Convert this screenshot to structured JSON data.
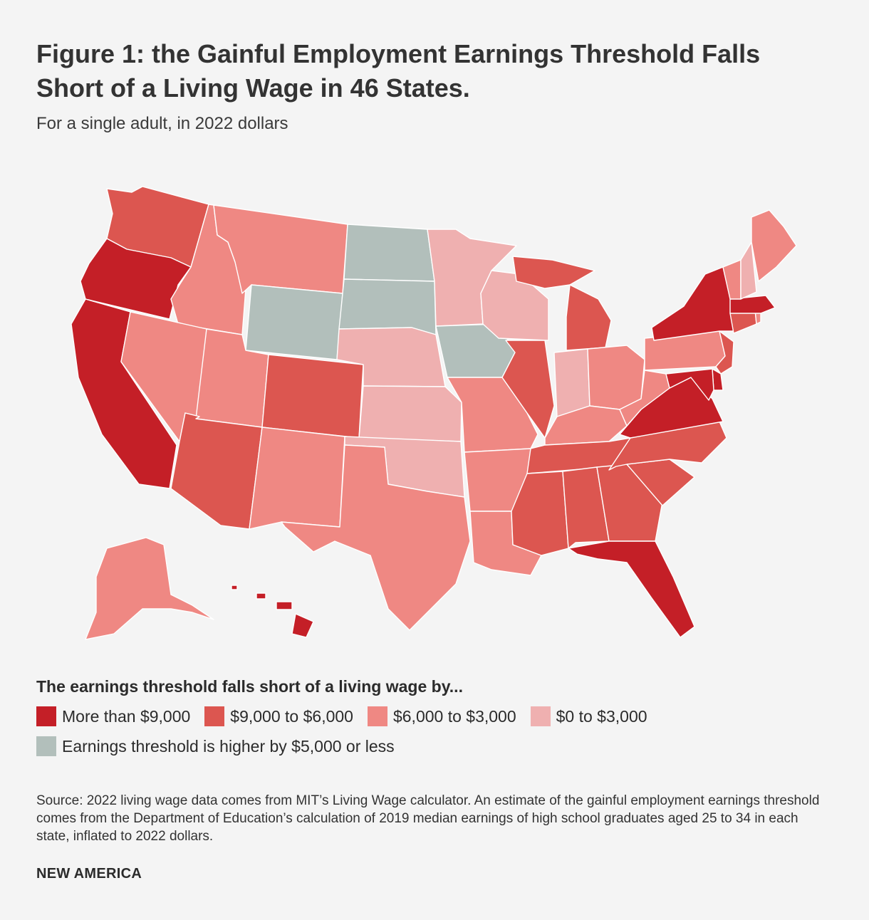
{
  "title": "Figure 1: the Gainful Employment Earnings Threshold Falls Short of a Living Wage in 46 States.",
  "subtitle": "For a single adult, in 2022 dollars",
  "legend": {
    "heading": "The earnings threshold falls short of a living wage by...",
    "items": [
      {
        "label": "More than $9,000",
        "color": "#c41f27"
      },
      {
        "label": "$9,000 to $6,000",
        "color": "#dc5650"
      },
      {
        "label": "$6,000 to $3,000",
        "color": "#ef8883"
      },
      {
        "label": "$0 to $3,000",
        "color": "#efb0b0"
      },
      {
        "label": "Earnings threshold is higher by $5,000 or less",
        "color": "#b2bfbb"
      }
    ]
  },
  "map_data": {
    "categories": [
      "More than $9,000",
      "$9,000 to $6,000",
      "$6,000 to $3,000",
      "$0 to $3,000",
      "Earnings threshold is higher by $5,000 or less"
    ],
    "states": [
      {
        "name": "WA",
        "category": 1
      },
      {
        "name": "OR",
        "category": 0
      },
      {
        "name": "CA",
        "category": 0
      },
      {
        "name": "ID",
        "category": 2
      },
      {
        "name": "NV",
        "category": 2
      },
      {
        "name": "MT",
        "category": 2
      },
      {
        "name": "WY",
        "category": 4
      },
      {
        "name": "UT",
        "category": 2
      },
      {
        "name": "AZ",
        "category": 1
      },
      {
        "name": "CO",
        "category": 1
      },
      {
        "name": "NM",
        "category": 2
      },
      {
        "name": "ND",
        "category": 4
      },
      {
        "name": "SD",
        "category": 4
      },
      {
        "name": "NE",
        "category": 3
      },
      {
        "name": "KS",
        "category": 3
      },
      {
        "name": "OK",
        "category": 3
      },
      {
        "name": "TX",
        "category": 2
      },
      {
        "name": "MN",
        "category": 3
      },
      {
        "name": "IA",
        "category": 4
      },
      {
        "name": "MO",
        "category": 2
      },
      {
        "name": "AR",
        "category": 2
      },
      {
        "name": "LA",
        "category": 2
      },
      {
        "name": "WI",
        "category": 3
      },
      {
        "name": "IL",
        "category": 1
      },
      {
        "name": "MI",
        "category": 1
      },
      {
        "name": "IN",
        "category": 3
      },
      {
        "name": "OH",
        "category": 2
      },
      {
        "name": "KY",
        "category": 2
      },
      {
        "name": "TN",
        "category": 1
      },
      {
        "name": "MS",
        "category": 1
      },
      {
        "name": "AL",
        "category": 1
      },
      {
        "name": "GA",
        "category": 1
      },
      {
        "name": "FL",
        "category": 0
      },
      {
        "name": "SC",
        "category": 1
      },
      {
        "name": "NC",
        "category": 1
      },
      {
        "name": "VA",
        "category": 0
      },
      {
        "name": "WV",
        "category": 2
      },
      {
        "name": "PA",
        "category": 2
      },
      {
        "name": "NY",
        "category": 0
      },
      {
        "name": "VT",
        "category": 2
      },
      {
        "name": "NH",
        "category": 3
      },
      {
        "name": "ME",
        "category": 2
      },
      {
        "name": "MA",
        "category": 0
      },
      {
        "name": "RI",
        "category": 2
      },
      {
        "name": "CT",
        "category": 1
      },
      {
        "name": "NJ",
        "category": 1
      },
      {
        "name": "DE",
        "category": 0
      },
      {
        "name": "MD",
        "category": 0
      },
      {
        "name": "AK",
        "category": 2
      },
      {
        "name": "HI",
        "category": 0
      }
    ]
  },
  "source": "Source: 2022 living wage data comes from MIT’s Living Wage calculator. An estimate of the gainful employment earnings threshold comes from the Department of Education’s calculation of 2019 median earnings of high school graduates aged 25 to 34 in each state, inflated to 2022 dollars.",
  "brand": "NEW AMERICA"
}
